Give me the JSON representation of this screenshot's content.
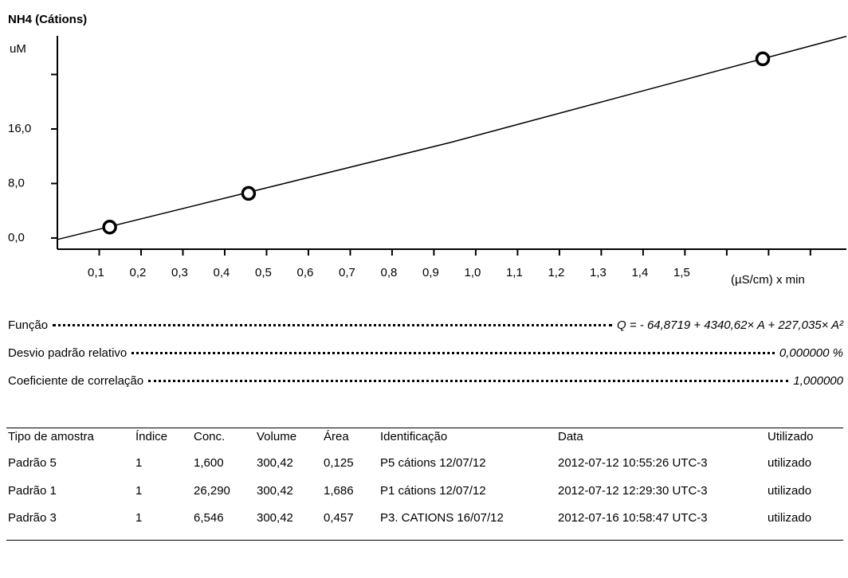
{
  "chart_data": {
    "type": "scatter",
    "title": "NH4 (Cátions)",
    "y_label": "uM",
    "x_label": "(µS/cm) x min",
    "x": [
      0.125,
      1.686,
      0.457
    ],
    "values": [
      1.6,
      26.29,
      6.546
    ],
    "color": "#000000",
    "fit_line": {
      "x": [
        0,
        0.94,
        1.886
      ],
      "values": [
        -0.216,
        14.03,
        29.6
      ],
      "color": "#000000"
    },
    "xlim": [
      0,
      1.886
    ],
    "ylim": [
      -1.64,
      29.67
    ],
    "xticks": [
      {
        "value": 0.1,
        "label": "0,1"
      },
      {
        "value": 0.2,
        "label": "0,2"
      },
      {
        "value": 0.3,
        "label": "0,3"
      },
      {
        "value": 0.4,
        "label": "0,4"
      },
      {
        "value": 0.5,
        "label": "0,5"
      },
      {
        "value": 0.6,
        "label": "0,6"
      },
      {
        "value": 0.7,
        "label": "0,7"
      },
      {
        "value": 0.8,
        "label": "0,8"
      },
      {
        "value": 0.9,
        "label": "0,9"
      },
      {
        "value": 1.0,
        "label": "1,0"
      },
      {
        "value": 1.1,
        "label": "1,1"
      },
      {
        "value": 1.2,
        "label": "1,2"
      },
      {
        "value": 1.3,
        "label": "1,3"
      },
      {
        "value": 1.4,
        "label": "1,4"
      },
      {
        "value": 1.5,
        "label": "1,5"
      }
    ],
    "xticks_unlabeled": [
      1.6,
      1.7,
      1.8
    ],
    "yticks": [
      {
        "value": 0,
        "label": "0,0"
      },
      {
        "value": 8,
        "label": "8,0"
      },
      {
        "value": 16,
        "label": "16,0"
      }
    ],
    "yticks_unlabeled": [
      24
    ],
    "grid": false
  },
  "stats": [
    {
      "label": "Função",
      "value": "Q = - 64,8719 + 4340,62× A + 227,035× A²"
    },
    {
      "label": "Desvio padrão relativo",
      "value": "0,000000 %"
    },
    {
      "label": "Coeficiente de correlação",
      "value": "1,000000"
    }
  ],
  "table": {
    "header": [
      "Tipo de amostra",
      "Índice",
      "Conc.",
      "Volume",
      "Área",
      "Identificação",
      "Data",
      "Utilizado"
    ],
    "rows": [
      [
        "Padrão 5",
        "1",
        "1,600",
        "300,42",
        "0,125",
        "P5 cátions 12/07/12",
        "2012-07-12 10:55:26 UTC-3",
        "utilizado"
      ],
      [
        "Padrão 1",
        "1",
        "26,290",
        "300,42",
        "1,686",
        "P1 cátions 12/07/12",
        "2012-07-12 12:29:30 UTC-3",
        "utilizado"
      ],
      [
        "Padrão 3",
        "1",
        "6,546",
        "300,42",
        "0,457",
        "P3. CATIONS 16/07/12",
        "2012-07-16 10:58:47 UTC-3",
        "utilizado"
      ]
    ]
  }
}
